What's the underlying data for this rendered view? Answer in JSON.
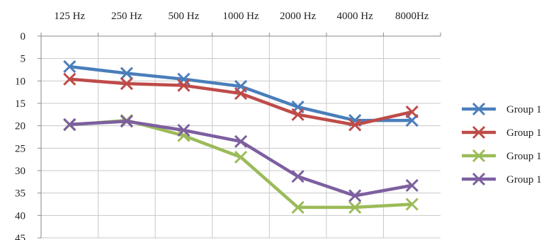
{
  "chart_data": {
    "type": "line",
    "categories": [
      "125 Hz",
      "250 Hz",
      "500 Hz",
      "1000 Hz",
      "2000 Hz",
      "4000 Hz",
      "8000Hz"
    ],
    "ylim": [
      0,
      45
    ],
    "y_ticks": [
      0,
      5,
      10,
      15,
      20,
      25,
      30,
      35,
      40,
      45
    ],
    "y_inverted": true,
    "x_axis_position": "top",
    "grid": true,
    "legend_position": "right",
    "marker": "x",
    "series": [
      {
        "name": "Group 1",
        "color": "#4a7ebb",
        "values": [
          6.8,
          8.3,
          9.6,
          11.2,
          15.8,
          18.8,
          18.8
        ]
      },
      {
        "name": "Group 1",
        "color": "#be4b48",
        "values": [
          9.6,
          10.6,
          11.0,
          12.8,
          17.5,
          19.8,
          16.9
        ]
      },
      {
        "name": "Group 1",
        "color": "#9bbb59",
        "values": [
          19.8,
          18.8,
          22.2,
          27.0,
          38.2,
          38.2,
          37.5
        ]
      },
      {
        "name": "Group 1",
        "color": "#7d5fa0",
        "values": [
          19.7,
          19.0,
          21.0,
          23.5,
          31.3,
          35.6,
          33.3
        ]
      }
    ]
  }
}
